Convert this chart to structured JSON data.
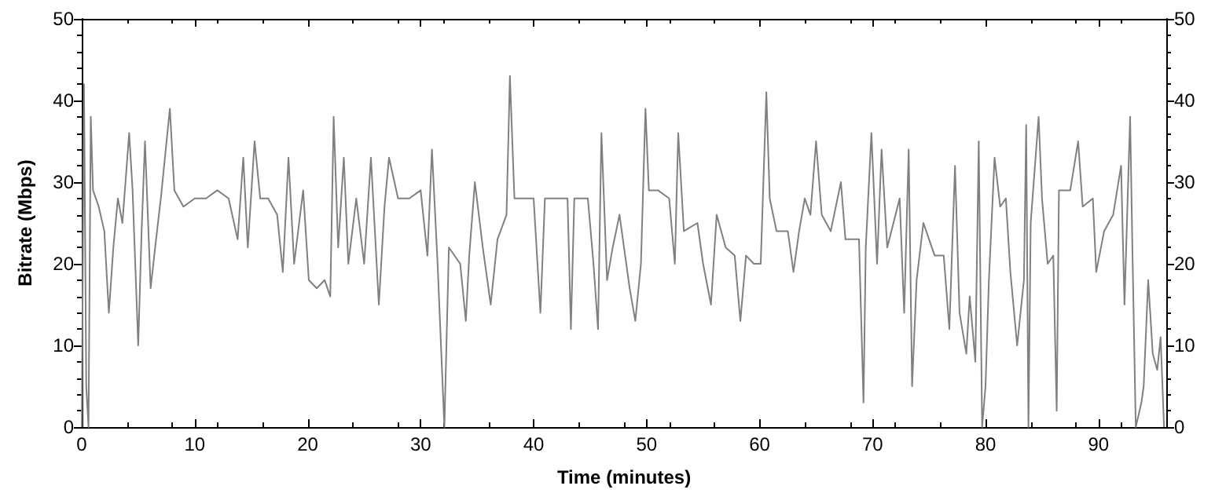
{
  "chart_data": {
    "type": "line",
    "xlabel": "Time (minutes)",
    "ylabel": "Bitrate (Mbps)",
    "xlim": [
      0,
      96
    ],
    "xticks": [
      0,
      10,
      20,
      30,
      40,
      50,
      60,
      70,
      80,
      90
    ],
    "ylim": [
      0,
      50
    ],
    "yticks": [
      0,
      10,
      20,
      30,
      40,
      50
    ],
    "y2lim": [
      0,
      50
    ],
    "y2ticks": [
      0,
      10,
      20,
      30,
      40,
      50
    ],
    "grid": false,
    "marker": "none",
    "line_style": "solid",
    "series": [
      {
        "color": "#808080",
        "x": [
          0,
          0.2,
          0.4,
          0.6,
          0.8,
          1.0,
          1.5,
          2.0,
          2.4,
          2.8,
          3.2,
          3.6,
          4.2,
          4.5,
          5.0,
          5.3,
          5.6,
          6.1,
          6.5,
          7.0,
          7.8,
          8.2,
          9,
          10,
          11,
          12,
          13,
          13.8,
          14.3,
          14.7,
          15.3,
          15.8,
          16.5,
          17.3,
          17.8,
          18.3,
          18.8,
          19.6,
          20.1,
          20.8,
          21.5,
          22.0,
          22.3,
          22.7,
          23.2,
          23.6,
          24.3,
          25,
          25.6,
          26.3,
          26.8,
          27.2,
          28,
          29,
          30,
          30.6,
          31,
          31.5,
          31.8,
          32.1,
          32.5,
          33.5,
          34,
          34.3,
          34.8,
          35.5,
          36.2,
          36.8,
          37.6,
          37.9,
          38.3,
          40,
          40.6,
          41,
          43,
          43.3,
          43.6,
          44.8,
          45.3,
          45.7,
          46,
          46.5,
          47,
          47.6,
          48.5,
          49,
          49.5,
          49.9,
          50.2,
          51,
          52,
          52.5,
          52.8,
          53.3,
          54.5,
          55,
          55.7,
          56.2,
          57,
          57.8,
          58.3,
          58.8,
          59.5,
          60.1,
          60.6,
          60.9,
          61.5,
          62.5,
          63,
          63.5,
          64,
          64.5,
          65,
          65.5,
          66.3,
          67.2,
          67.6,
          68.8,
          69.2,
          69.4,
          69.9,
          70.4,
          70.8,
          71.3,
          72.4,
          72.8,
          73.2,
          73.5,
          73.9,
          74.5,
          75.5,
          76.3,
          76.8,
          77.3,
          77.7,
          78.3,
          78.6,
          79.1,
          79.4,
          79.7,
          80,
          80.3,
          80.8,
          81.3,
          81.8,
          82.2,
          82.8,
          83.4,
          83.6,
          83.8,
          84,
          84.7,
          85,
          85.5,
          86,
          86.3,
          86.5,
          87.5,
          88.2,
          88.6,
          89.5,
          89.8,
          90.5,
          91.3,
          92,
          92.3,
          92.8,
          93,
          93.3,
          93.8,
          94,
          94.4,
          94.8,
          95.2,
          95.5,
          95.8
        ],
        "values": [
          0,
          42,
          5,
          0,
          38,
          29,
          27,
          24,
          14,
          22,
          28,
          25,
          36,
          29,
          10,
          24,
          35,
          17,
          22,
          28,
          39,
          29,
          27,
          28,
          28,
          29,
          28,
          23,
          33,
          22,
          35,
          28,
          28,
          26,
          19,
          33,
          20,
          29,
          18,
          17,
          18,
          16,
          38,
          22,
          33,
          20,
          28,
          20,
          33,
          15,
          27,
          33,
          28,
          28,
          29,
          21,
          34,
          20,
          10,
          0,
          22,
          20,
          13,
          21,
          30,
          22,
          15,
          23,
          26,
          43,
          28,
          28,
          14,
          28,
          28,
          12,
          28,
          28,
          20,
          12,
          36,
          18,
          22,
          26,
          17,
          13,
          20,
          39,
          29,
          29,
          28,
          20,
          36,
          24,
          25,
          20,
          15,
          26,
          22,
          21,
          13,
          21,
          20,
          20,
          41,
          28,
          24,
          24,
          19,
          24,
          28,
          26,
          35,
          26,
          24,
          30,
          23,
          23,
          3,
          22,
          36,
          20,
          34,
          22,
          28,
          14,
          34,
          5,
          18,
          25,
          21,
          21,
          12,
          32,
          14,
          9,
          16,
          8,
          35,
          0,
          5,
          18,
          33,
          27,
          28,
          19,
          10,
          18,
          37,
          0,
          25,
          38,
          28,
          20,
          21,
          2,
          29,
          29,
          35,
          27,
          28,
          19,
          24,
          26,
          32,
          15,
          38,
          22,
          0,
          3,
          5,
          18,
          9,
          7,
          11,
          0
        ]
      }
    ]
  }
}
